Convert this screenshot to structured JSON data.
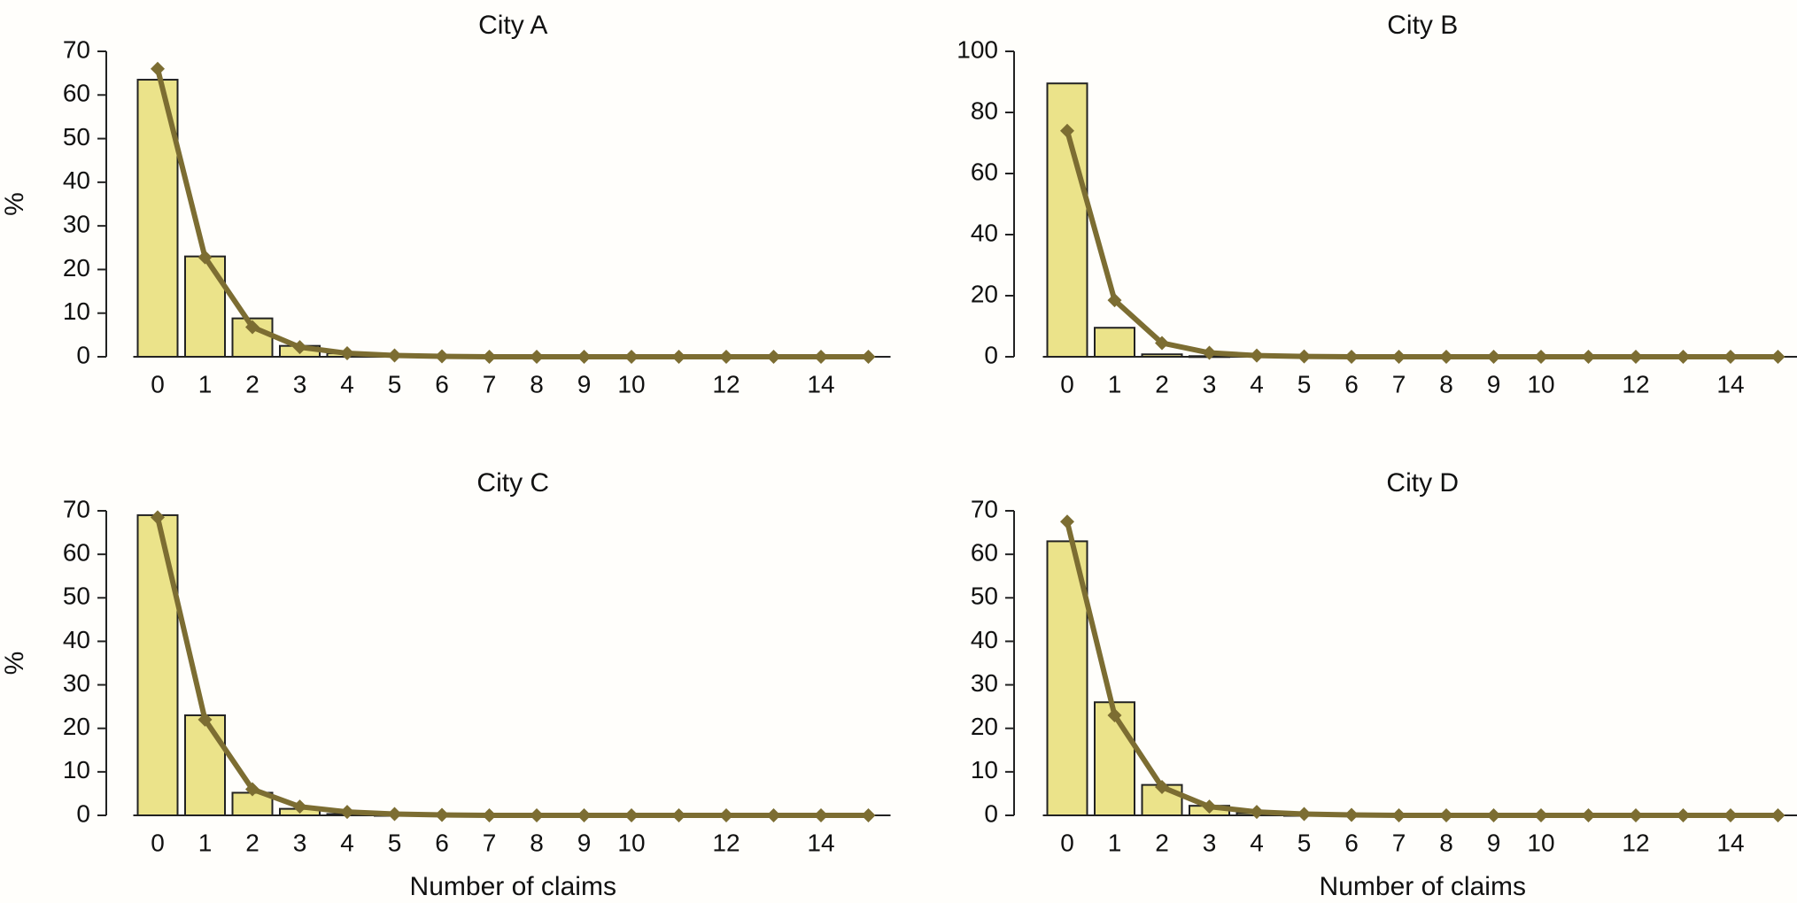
{
  "chart_data": [
    {
      "type": "bar",
      "title": "City A",
      "xlabel": "",
      "ylabel": "%",
      "ylim": [
        0,
        70
      ],
      "yticks": [
        0,
        10,
        20,
        30,
        40,
        50,
        60,
        70
      ],
      "xticks": [
        0,
        1,
        2,
        3,
        4,
        5,
        6,
        7,
        8,
        9,
        10,
        12,
        14
      ],
      "categories": [
        0,
        1,
        2,
        3,
        4,
        5,
        6,
        7,
        8,
        9,
        10,
        11,
        12,
        13,
        14,
        15
      ],
      "series": [
        {
          "kind": "bar",
          "values": [
            63.5,
            23,
            8.8,
            2.5,
            0.8,
            0.2,
            0.1,
            0,
            0,
            0,
            0,
            0,
            0,
            0,
            0,
            0
          ]
        },
        {
          "kind": "line",
          "values": [
            66,
            22.8,
            6.8,
            2.2,
            0.8,
            0.3,
            0.1,
            0,
            0,
            0,
            0,
            0,
            0,
            0,
            0,
            0
          ]
        }
      ],
      "colors": {
        "bar": "#ebe38a",
        "line": "#7c6d32"
      }
    },
    {
      "type": "bar",
      "title": "City B",
      "xlabel": "",
      "ylabel": "",
      "ylim": [
        0,
        100
      ],
      "yticks": [
        0,
        20,
        40,
        60,
        80,
        100
      ],
      "xticks": [
        0,
        1,
        2,
        3,
        4,
        5,
        6,
        7,
        8,
        9,
        10,
        12,
        14
      ],
      "categories": [
        0,
        1,
        2,
        3,
        4,
        5,
        6,
        7,
        8,
        9,
        10,
        11,
        12,
        13,
        14,
        15
      ],
      "series": [
        {
          "kind": "bar",
          "values": [
            89.5,
            9.5,
            0.8,
            0.2,
            0,
            0,
            0,
            0,
            0,
            0,
            0,
            0,
            0,
            0,
            0,
            0
          ]
        },
        {
          "kind": "line",
          "values": [
            74,
            18.5,
            4.5,
            1.3,
            0.4,
            0.1,
            0,
            0,
            0,
            0,
            0,
            0,
            0,
            0,
            0,
            0
          ]
        }
      ],
      "colors": {
        "bar": "#ebe38a",
        "line": "#7c6d32"
      }
    },
    {
      "type": "bar",
      "title": "City C",
      "xlabel": "Number of claims",
      "ylabel": "%",
      "ylim": [
        0,
        70
      ],
      "yticks": [
        0,
        10,
        20,
        30,
        40,
        50,
        60,
        70
      ],
      "xticks": [
        0,
        1,
        2,
        3,
        4,
        5,
        6,
        7,
        8,
        9,
        10,
        12,
        14
      ],
      "categories": [
        0,
        1,
        2,
        3,
        4,
        5,
        6,
        7,
        8,
        9,
        10,
        11,
        12,
        13,
        14,
        15
      ],
      "series": [
        {
          "kind": "bar",
          "values": [
            69,
            23,
            5.2,
            1.5,
            0.3,
            0.1,
            0,
            0,
            0,
            0,
            0,
            0,
            0,
            0,
            0,
            0
          ]
        },
        {
          "kind": "line",
          "values": [
            68.5,
            22,
            6,
            2,
            0.8,
            0.3,
            0.1,
            0,
            0,
            0,
            0,
            0,
            0,
            0,
            0,
            0
          ]
        }
      ],
      "colors": {
        "bar": "#ebe38a",
        "line": "#7c6d32"
      }
    },
    {
      "type": "bar",
      "title": "City D",
      "xlabel": "Number of claims",
      "ylabel": "",
      "ylim": [
        0,
        70
      ],
      "yticks": [
        0,
        10,
        20,
        30,
        40,
        50,
        60,
        70
      ],
      "xticks": [
        0,
        1,
        2,
        3,
        4,
        5,
        6,
        7,
        8,
        9,
        10,
        12,
        14
      ],
      "categories": [
        0,
        1,
        2,
        3,
        4,
        5,
        6,
        7,
        8,
        9,
        10,
        11,
        12,
        13,
        14,
        15
      ],
      "series": [
        {
          "kind": "bar",
          "values": [
            63,
            26,
            7,
            2.2,
            0.5,
            0.1,
            0,
            0,
            0,
            0,
            0,
            0,
            0,
            0,
            0,
            0
          ]
        },
        {
          "kind": "line",
          "values": [
            67.5,
            23,
            6.5,
            2,
            0.8,
            0.3,
            0.1,
            0,
            0,
            0,
            0,
            0,
            0,
            0,
            0,
            0
          ]
        }
      ],
      "colors": {
        "bar": "#ebe38a",
        "line": "#7c6d32"
      }
    }
  ]
}
